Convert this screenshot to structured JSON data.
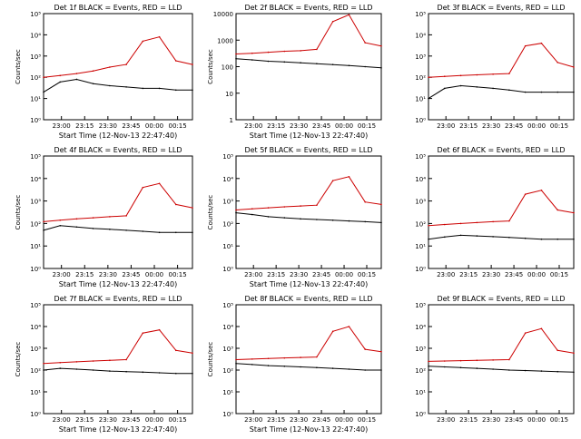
{
  "figure": {
    "background": "#ffffff",
    "axis_color": "#000000"
  },
  "chart_data": [
    {
      "type": "line",
      "title": "Det 1f BLACK = Events, RED = LLD",
      "xlabel": "Start Time (12-Nov-13 22:47:40)",
      "ylabel": "Counts/sec",
      "yscale": "log",
      "ylim": [
        1,
        100000
      ],
      "yticks": [
        "10⁰",
        "10¹",
        "10²",
        "10³",
        "10⁴",
        "10⁵"
      ],
      "xticks": [
        "23:00",
        "23:15",
        "23:30",
        "23:45",
        "00:00",
        "00:15"
      ],
      "series": [
        {
          "name": "Events",
          "color": "#000000",
          "x": [
            0,
            1,
            2,
            3,
            4,
            5,
            6,
            7,
            8,
            9
          ],
          "y": [
            20,
            60,
            80,
            50,
            40,
            35,
            30,
            30,
            25,
            25
          ]
        },
        {
          "name": "LLD",
          "color": "#cc0000",
          "x": [
            0,
            1,
            2,
            3,
            4,
            5,
            6,
            7,
            8,
            9
          ],
          "y": [
            100,
            120,
            150,
            200,
            300,
            400,
            5000,
            8000,
            600,
            400
          ]
        }
      ]
    },
    {
      "type": "line",
      "title": "Det 2f BLACK = Events, RED = LLD",
      "xlabel": "Start Time (12-Nov-13 22:47:40)",
      "ylabel": "Counts/sec",
      "yscale": "log",
      "ylim": [
        1,
        10000
      ],
      "yticks": [
        "1",
        "10",
        "100",
        "1000",
        "10000"
      ],
      "xticks": [
        "23:00",
        "23:15",
        "23:30",
        "23:45",
        "00:00",
        "00:15"
      ],
      "series": [
        {
          "name": "Events",
          "color": "#000000",
          "x": [
            0,
            1,
            2,
            3,
            4,
            5,
            6,
            7,
            8,
            9
          ],
          "y": [
            200,
            180,
            160,
            150,
            140,
            130,
            120,
            110,
            100,
            90
          ]
        },
        {
          "name": "LLD",
          "color": "#cc0000",
          "x": [
            0,
            1,
            2,
            3,
            4,
            5,
            6,
            7,
            8,
            9
          ],
          "y": [
            300,
            320,
            350,
            380,
            400,
            450,
            5000,
            9000,
            800,
            600
          ]
        }
      ]
    },
    {
      "type": "line",
      "title": "Det 3f BLACK = Events, RED = LLD",
      "xlabel": "",
      "ylabel": "",
      "yscale": "log",
      "ylim": [
        1,
        100000
      ],
      "yticks": [
        "10⁰",
        "10¹",
        "10²",
        "10³",
        "10⁴",
        "10⁵"
      ],
      "xticks": [
        "23:00",
        "23:15",
        "23:30",
        "23:45",
        "00:00",
        "00:15"
      ],
      "series": [
        {
          "name": "Events",
          "color": "#000000",
          "x": [
            0,
            1,
            2,
            3,
            4,
            5,
            6,
            7,
            8,
            9
          ],
          "y": [
            10,
            30,
            40,
            35,
            30,
            25,
            20,
            20,
            20,
            20
          ]
        },
        {
          "name": "LLD",
          "color": "#cc0000",
          "x": [
            0,
            1,
            2,
            3,
            4,
            5,
            6,
            7,
            8,
            9
          ],
          "y": [
            100,
            110,
            120,
            130,
            140,
            150,
            3000,
            4000,
            500,
            300
          ]
        }
      ]
    },
    {
      "type": "line",
      "title": "Det 4f BLACK = Events, RED = LLD",
      "xlabel": "Start Time (12-Nov-13 22:47:40)",
      "ylabel": "Counts/sec",
      "yscale": "log",
      "ylim": [
        1,
        100000
      ],
      "yticks": [
        "10⁰",
        "10¹",
        "10²",
        "10³",
        "10⁴",
        "10⁵"
      ],
      "xticks": [
        "23:00",
        "23:15",
        "23:30",
        "23:45",
        "00:00",
        "00:15"
      ],
      "series": [
        {
          "name": "Events",
          "color": "#000000",
          "x": [
            0,
            1,
            2,
            3,
            4,
            5,
            6,
            7,
            8,
            9
          ],
          "y": [
            50,
            80,
            70,
            60,
            55,
            50,
            45,
            40,
            40,
            40
          ]
        },
        {
          "name": "LLD",
          "color": "#cc0000",
          "x": [
            0,
            1,
            2,
            3,
            4,
            5,
            6,
            7,
            8,
            9
          ],
          "y": [
            120,
            140,
            160,
            180,
            200,
            220,
            4000,
            6000,
            700,
            500
          ]
        }
      ]
    },
    {
      "type": "line",
      "title": "Det 5f BLACK = Events, RED = LLD",
      "xlabel": "Start Time (12-Nov-13 22:47:40)",
      "ylabel": "Counts/sec",
      "yscale": "log",
      "ylim": [
        1,
        100000
      ],
      "yticks": [
        "10⁰",
        "10¹",
        "10²",
        "10³",
        "10⁴",
        "10⁵"
      ],
      "xticks": [
        "23:00",
        "23:15",
        "23:30",
        "23:45",
        "00:00",
        "00:15"
      ],
      "series": [
        {
          "name": "Events",
          "color": "#000000",
          "x": [
            0,
            1,
            2,
            3,
            4,
            5,
            6,
            7,
            8,
            9
          ],
          "y": [
            300,
            250,
            200,
            180,
            160,
            150,
            140,
            130,
            120,
            110
          ]
        },
        {
          "name": "LLD",
          "color": "#cc0000",
          "x": [
            0,
            1,
            2,
            3,
            4,
            5,
            6,
            7,
            8,
            9
          ],
          "y": [
            400,
            450,
            500,
            550,
            600,
            650,
            8000,
            12000,
            900,
            700
          ]
        }
      ]
    },
    {
      "type": "line",
      "title": "Det 6f BLACK = Events, RED = LLD",
      "xlabel": "",
      "ylabel": "",
      "yscale": "log",
      "ylim": [
        1,
        100000
      ],
      "yticks": [
        "10⁰",
        "10¹",
        "10²",
        "10³",
        "10⁴",
        "10⁵"
      ],
      "xticks": [
        "23:00",
        "23:15",
        "23:30",
        "23:45",
        "00:00",
        "00:15"
      ],
      "series": [
        {
          "name": "Events",
          "color": "#000000",
          "x": [
            0,
            1,
            2,
            3,
            4,
            5,
            6,
            7,
            8,
            9
          ],
          "y": [
            20,
            25,
            30,
            28,
            26,
            24,
            22,
            20,
            20,
            20
          ]
        },
        {
          "name": "LLD",
          "color": "#cc0000",
          "x": [
            0,
            1,
            2,
            3,
            4,
            5,
            6,
            7,
            8,
            9
          ],
          "y": [
            80,
            90,
            100,
            110,
            120,
            130,
            2000,
            3000,
            400,
            300
          ]
        }
      ]
    },
    {
      "type": "line",
      "title": "Det 7f BLACK = Events, RED = LLD",
      "xlabel": "Start Time (12-Nov-13 22:47:40)",
      "ylabel": "Counts/sec",
      "yscale": "log",
      "ylim": [
        1,
        100000
      ],
      "yticks": [
        "10⁰",
        "10¹",
        "10²",
        "10³",
        "10⁴",
        "10⁵"
      ],
      "xticks": [
        "23:00",
        "23:15",
        "23:30",
        "23:45",
        "00:00",
        "00:15"
      ],
      "series": [
        {
          "name": "Events",
          "color": "#000000",
          "x": [
            0,
            1,
            2,
            3,
            4,
            5,
            6,
            7,
            8,
            9
          ],
          "y": [
            100,
            120,
            110,
            100,
            90,
            85,
            80,
            75,
            70,
            70
          ]
        },
        {
          "name": "LLD",
          "color": "#cc0000",
          "x": [
            0,
            1,
            2,
            3,
            4,
            5,
            6,
            7,
            8,
            9
          ],
          "y": [
            200,
            220,
            240,
            260,
            280,
            300,
            5000,
            7000,
            800,
            600
          ]
        }
      ]
    },
    {
      "type": "line",
      "title": "Det 8f BLACK = Events, RED = LLD",
      "xlabel": "Start Time (12-Nov-13 22:47:40)",
      "ylabel": "Counts/sec",
      "yscale": "log",
      "ylim": [
        1,
        100000
      ],
      "yticks": [
        "10⁰",
        "10¹",
        "10²",
        "10³",
        "10⁴",
        "10⁵"
      ],
      "xticks": [
        "23:00",
        "23:15",
        "23:30",
        "23:45",
        "00:00",
        "00:15"
      ],
      "series": [
        {
          "name": "Events",
          "color": "#000000",
          "x": [
            0,
            1,
            2,
            3,
            4,
            5,
            6,
            7,
            8,
            9
          ],
          "y": [
            200,
            180,
            160,
            150,
            140,
            130,
            120,
            110,
            100,
            100
          ]
        },
        {
          "name": "LLD",
          "color": "#cc0000",
          "x": [
            0,
            1,
            2,
            3,
            4,
            5,
            6,
            7,
            8,
            9
          ],
          "y": [
            300,
            320,
            340,
            360,
            380,
            400,
            6000,
            10000,
            900,
            700
          ]
        }
      ]
    },
    {
      "type": "line",
      "title": "Det 9f BLACK = Events, RED = LLD",
      "xlabel": "",
      "ylabel": "",
      "yscale": "log",
      "ylim": [
        1,
        100000
      ],
      "yticks": [
        "10⁰",
        "10¹",
        "10²",
        "10³",
        "10⁴",
        "10⁵"
      ],
      "xticks": [
        "23:00",
        "23:15",
        "23:30",
        "23:45",
        "00:00",
        "00:15"
      ],
      "series": [
        {
          "name": "Events",
          "color": "#000000",
          "x": [
            0,
            1,
            2,
            3,
            4,
            5,
            6,
            7,
            8,
            9
          ],
          "y": [
            150,
            140,
            130,
            120,
            110,
            100,
            95,
            90,
            85,
            80
          ]
        },
        {
          "name": "LLD",
          "color": "#cc0000",
          "x": [
            0,
            1,
            2,
            3,
            4,
            5,
            6,
            7,
            8,
            9
          ],
          "y": [
            250,
            260,
            270,
            280,
            290,
            300,
            5000,
            8000,
            800,
            600
          ]
        }
      ]
    }
  ]
}
